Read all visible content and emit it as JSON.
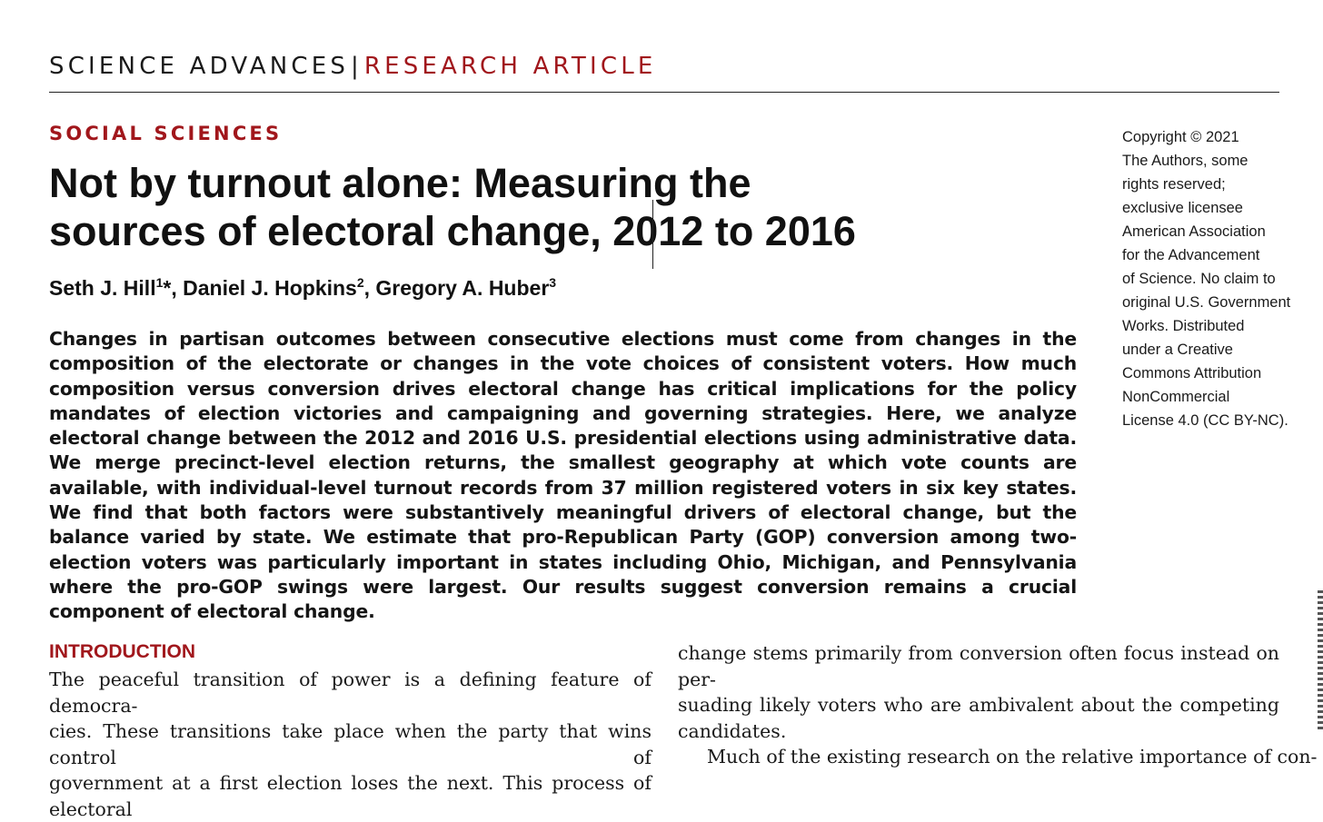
{
  "header": {
    "journal": "SCIENCE ADVANCES",
    "separator": "|",
    "article_type": "RESEARCH ARTICLE"
  },
  "section": "SOCIAL SCIENCES",
  "title": "Not by turnout alone: Measuring the sources of electoral change, 2012 to 2016",
  "authors": [
    {
      "name": "Seth J. Hill",
      "affil": "1",
      "mark": "*",
      "sep": ", "
    },
    {
      "name": "Daniel J. Hopkins",
      "affil": "2",
      "mark": "",
      "sep": ", "
    },
    {
      "name": "Gregory A. Huber",
      "affil": "3",
      "mark": "",
      "sep": ""
    }
  ],
  "abstract": "Changes in partisan outcomes between consecutive elections must come from changes in the composition of the electorate or changes in the vote choices of consistent voters. How much composition versus conversion drives electoral change has critical implications for the policy mandates of election victories and campaigning and governing strategies. Here, we analyze electoral change between the 2012 and 2016 U.S. presidential elections using administrative data. We merge precinct-level election returns, the smallest geography at which vote counts are available, with individual-level turnout records from 37 million registered voters in six key states. We find that both factors were substantively meaningful drivers of electoral change, but the balance varied by state. We estimate that pro-Republican Party (GOP) conversion among two-election voters was particularly important in states including Ohio, Michigan, and Pennsylvania where the pro-GOP swings were largest. Our results suggest conversion remains a crucial component of electoral change.",
  "copyright_lines": [
    "Copyright © 2021",
    "The Authors, some",
    "rights reserved;",
    "exclusive licensee",
    "American Association",
    "for the Advancement",
    "of Science. No claim to",
    "original U.S. Government",
    "Works. Distributed",
    "under a Creative",
    "Commons Attribution",
    "NonCommercial",
    "License 4.0 (CC BY-NC)."
  ],
  "intro_heading": "INTRODUCTION",
  "left_column_lines": [
    "The peaceful transition of power is a defining feature of democra-",
    "cies. These transitions take place when the party that wins control of",
    "government at a first election loses the next. This process of electoral"
  ],
  "right_column_lines": [
    "change stems primarily from conversion often focus instead on per-",
    "suading likely voters who are ambivalent about the competing",
    "candidates.",
    "Much of the existing research on the relative importance of con-"
  ]
}
